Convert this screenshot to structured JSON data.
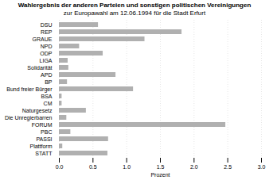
{
  "chart_data": {
    "type": "bar",
    "orientation": "horizontal",
    "title": "Wahlergebnis der anderen Parteien und sonstigen politischen Vereinigungen",
    "subtitle": "zur Europawahl am 12.06.1994 für die Stadt Erfurt",
    "xlabel": "Prozent",
    "categories": [
      "DSU",
      "REP",
      "GRAUE",
      "NPD",
      "ODP",
      "LIGA",
      "Solidarität",
      "APD",
      "BP",
      "Bund freier Bürger",
      "BSA",
      "CM",
      "Naturgesetz",
      "Die Unregierbarren",
      "FORUM",
      "PBC",
      "PASSI",
      "Plattform",
      "STATT"
    ],
    "values": [
      0.58,
      1.82,
      1.27,
      0.3,
      0.65,
      0.13,
      0.14,
      0.84,
      0.12,
      1.1,
      0.04,
      0.04,
      0.4,
      0.11,
      2.47,
      0.17,
      0.73,
      0.05,
      0.72
    ],
    "color": "#b0b0b0",
    "xlim": [
      0,
      3.0
    ],
    "xticks": [
      {
        "value": 0,
        "label": "0.0"
      },
      0.5,
      {
        "value": 1,
        "label": "1.0"
      },
      1.5,
      {
        "value": 2,
        "label": "2.0"
      },
      2.5,
      {
        "value": 3,
        "label": "3.0"
      }
    ],
    "grid": true
  }
}
